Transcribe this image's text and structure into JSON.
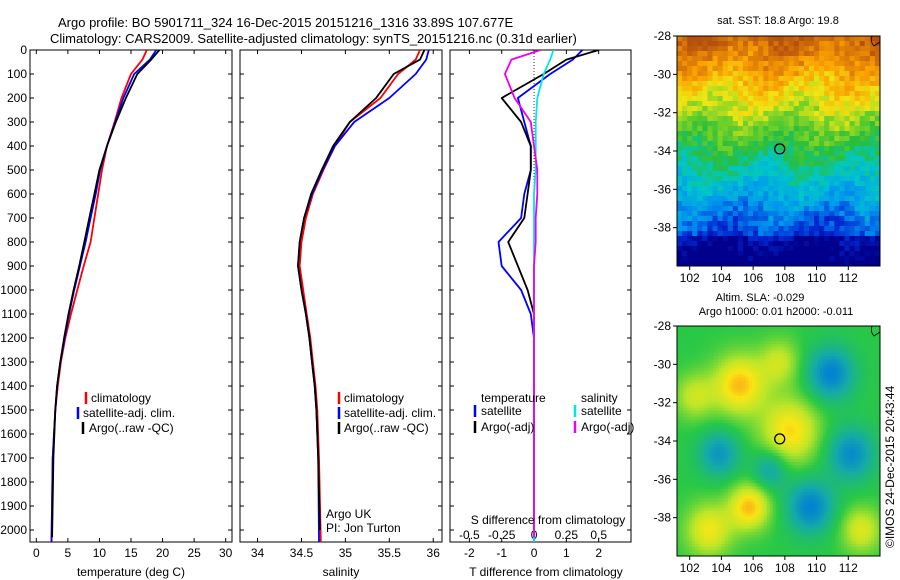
{
  "header": {
    "line1": "Argo profile: BO 5901711_324 16-Dec-2015 20151216_1316 33.89S 107.677E",
    "line2": "Climatology: CARS2009. Satellite-adjusted climatology: synTS_20151216.nc (0.31d earlier)"
  },
  "credit": "©IMOS 24-Dec-2015 20:43:44",
  "colors": {
    "climatology": "#ff0000",
    "satellite": "#0000ff",
    "argo": "#000000",
    "salinity_satellite": "#00e5ee",
    "salinity_argo": "#ee00ee"
  },
  "chart_data": [
    {
      "type": "line",
      "xlabel": "temperature (deg C)",
      "ylim": [
        2050,
        0
      ],
      "xlim": [
        -1,
        31
      ],
      "xticks": [
        "0",
        "5",
        "10",
        "15",
        "20",
        "25",
        "30"
      ],
      "xtick_values": [
        0,
        5,
        10,
        15,
        20,
        25,
        30
      ],
      "yticks": [
        "0",
        "100",
        "200",
        "300",
        "400",
        "500",
        "600",
        "700",
        "800",
        "900",
        "1000",
        "1100",
        "1200",
        "1300",
        "1400",
        "1500",
        "1600",
        "1700",
        "1800",
        "1900",
        "2000"
      ],
      "ytick_values": [
        0,
        100,
        200,
        300,
        400,
        500,
        600,
        700,
        800,
        900,
        1000,
        1100,
        1200,
        1300,
        1400,
        1500,
        1600,
        1700,
        1800,
        1900,
        2000
      ],
      "legend": [
        "climatology",
        "satellite-adj. clim.",
        "Argo(..raw -QC)"
      ],
      "series": [
        {
          "name": "climatology",
          "color": "#ff0000",
          "x": [
            17.5,
            16.8,
            15.0,
            13.5,
            12.4,
            11.2,
            10.4,
            9.8,
            9.2,
            8.6,
            7.5,
            6.5,
            5.5,
            4.6,
            3.9,
            3.4,
            3.0,
            2.6,
            2.4
          ],
          "y": [
            0,
            40,
            100,
            200,
            300,
            400,
            500,
            600,
            700,
            800,
            900,
            1000,
            1100,
            1200,
            1300,
            1400,
            1500,
            1700,
            2050
          ]
        },
        {
          "name": "satellite-adj. clim.",
          "color": "#0000ff",
          "x": [
            19.0,
            18.0,
            15.5,
            13.8,
            12.5,
            11.2,
            10.1,
            9.4,
            8.6,
            7.8,
            6.9,
            6.0,
            5.2,
            4.5,
            3.8,
            3.3,
            3.0,
            2.6,
            2.4
          ],
          "y": [
            0,
            40,
            100,
            200,
            300,
            400,
            500,
            600,
            700,
            800,
            900,
            1000,
            1100,
            1200,
            1300,
            1400,
            1500,
            1700,
            2050
          ]
        },
        {
          "name": "Argo(..raw -QC)",
          "color": "#000000",
          "x": [
            19.5,
            18.2,
            16.0,
            14.2,
            12.6,
            11.2,
            10.0,
            9.2,
            8.4,
            7.6,
            6.8,
            5.9,
            5.1,
            4.4,
            3.8,
            3.3,
            3.0,
            2.7,
            2.5
          ],
          "y": [
            0,
            40,
            100,
            200,
            300,
            400,
            500,
            600,
            700,
            800,
            900,
            1000,
            1100,
            1200,
            1300,
            1400,
            1500,
            1700,
            2030
          ]
        }
      ]
    },
    {
      "type": "line",
      "xlabel": "salinity",
      "ylim": [
        2050,
        0
      ],
      "xlim": [
        33.8,
        36.1
      ],
      "xticks": [
        "34",
        "34.5",
        "35",
        "35.5",
        "36"
      ],
      "xtick_values": [
        34,
        34.5,
        35,
        35.5,
        36
      ],
      "legend": [
        "climatology",
        "satellite-adj. clim.",
        "Argo(..raw -QC)"
      ],
      "annotation": [
        "Argo UK",
        "PI: Jon Turton"
      ],
      "series": [
        {
          "name": "climatology",
          "color": "#ff0000",
          "x": [
            35.85,
            35.8,
            35.6,
            35.4,
            35.05,
            34.88,
            34.75,
            34.63,
            34.55,
            34.5,
            34.48,
            34.52,
            34.56,
            34.6,
            34.63,
            34.66,
            34.68,
            34.7,
            34.72
          ],
          "y": [
            0,
            40,
            100,
            200,
            300,
            400,
            500,
            600,
            700,
            800,
            900,
            1000,
            1100,
            1200,
            1300,
            1400,
            1500,
            1700,
            2050
          ]
        },
        {
          "name": "satellite-adj. clim.",
          "color": "#0000ff",
          "x": [
            35.95,
            35.92,
            35.8,
            35.5,
            35.1,
            34.88,
            34.74,
            34.62,
            34.53,
            34.48,
            34.46,
            34.5,
            34.55,
            34.59,
            34.62,
            34.65,
            34.67,
            34.69,
            34.7
          ],
          "y": [
            0,
            40,
            100,
            200,
            300,
            400,
            500,
            600,
            700,
            800,
            900,
            1000,
            1100,
            1200,
            1300,
            1400,
            1500,
            1700,
            2050
          ]
        },
        {
          "name": "Argo(..raw -QC)",
          "color": "#000000",
          "x": [
            35.9,
            35.85,
            35.55,
            35.35,
            35.05,
            34.86,
            34.73,
            34.61,
            34.53,
            34.48,
            34.46,
            34.5,
            34.55,
            34.59,
            34.62,
            34.65,
            34.67,
            34.69,
            34.71
          ],
          "y": [
            0,
            40,
            100,
            200,
            300,
            400,
            500,
            600,
            700,
            800,
            900,
            1000,
            1100,
            1200,
            1300,
            1400,
            1500,
            1700,
            2000
          ]
        }
      ]
    },
    {
      "type": "line",
      "xlabel": "T difference from climatology",
      "title_bottom": "S difference from climatology",
      "ylim": [
        2050,
        0
      ],
      "xlim": [
        -2.6,
        3.0
      ],
      "xticks": [
        "-2",
        "-1",
        "0",
        "1",
        "2"
      ],
      "xtick_values": [
        -2,
        -1,
        0,
        1,
        2
      ],
      "sticks": [
        "-0.5",
        "-0.25",
        "0",
        "0.25",
        "0.5"
      ],
      "stick_values": [
        -2,
        -1,
        0,
        1,
        2
      ],
      "legend_temperature": [
        "temperature",
        "satellite",
        "Argo(-adj)"
      ],
      "legend_salinity": [
        "salinity",
        "satellite",
        "Argo(-adj)"
      ],
      "series": [
        {
          "name": "satellite",
          "color": "#0000ff",
          "x": [
            1.5,
            1.2,
            0.5,
            -0.5,
            -0.3,
            -0.1,
            -0.1,
            -0.3,
            -0.4,
            -1.1,
            -1.0,
            -0.4,
            -0.1,
            0,
            0,
            0,
            0,
            0,
            0
          ],
          "y": [
            0,
            40,
            100,
            200,
            300,
            400,
            500,
            600,
            700,
            800,
            900,
            1000,
            1100,
            1200,
            1300,
            1400,
            1500,
            1700,
            2050
          ]
        },
        {
          "name": "Argo(-adj)",
          "color": "#000000",
          "x": [
            2.0,
            1.0,
            0.3,
            -1.0,
            -0.4,
            -0.1,
            -0.1,
            -0.2,
            -0.3,
            -0.8,
            -0.5,
            -0.2,
            0,
            0,
            0,
            0,
            0,
            0,
            0
          ],
          "y": [
            0,
            40,
            100,
            200,
            300,
            400,
            500,
            600,
            700,
            800,
            900,
            1000,
            1100,
            1200,
            1300,
            1400,
            1500,
            1700,
            2030
          ]
        },
        {
          "name": "satellite",
          "color": "#00e5ee",
          "x": [
            0.6,
            0.5,
            0.3,
            0.1,
            0.05,
            0.05,
            0.05,
            0,
            0,
            0,
            0,
            0,
            0,
            0,
            0,
            0,
            0,
            0,
            0
          ],
          "y": [
            0,
            40,
            100,
            200,
            300,
            400,
            500,
            600,
            700,
            800,
            900,
            1000,
            1100,
            1200,
            1300,
            1400,
            1500,
            1700,
            2050
          ]
        },
        {
          "name": "Argo(-adj)",
          "color": "#ee00ee",
          "x": [
            0.2,
            -0.7,
            -0.9,
            -0.6,
            -0.1,
            0,
            0.1,
            0.1,
            0.05,
            0.05,
            0,
            0,
            0,
            0,
            0,
            0,
            0,
            0,
            0
          ],
          "y": [
            0,
            40,
            100,
            200,
            300,
            400,
            500,
            600,
            700,
            800,
            900,
            1000,
            1100,
            1200,
            1300,
            1400,
            1500,
            1700,
            2030
          ]
        }
      ]
    },
    {
      "type": "heatmap",
      "title": "sat. SST: 18.8 Argo: 19.8",
      "xticks": [
        "102",
        "104",
        "106",
        "108",
        "110",
        "112"
      ],
      "xtick_values": [
        102,
        104,
        106,
        108,
        110,
        112
      ],
      "yticks": [
        "-28",
        "-30",
        "-32",
        "-34",
        "-36",
        "-38"
      ],
      "ytick_values": [
        -28,
        -30,
        -32,
        -34,
        -36,
        -38
      ],
      "xlim": [
        101.2,
        114
      ],
      "ylim": [
        -28,
        -40
      ],
      "marker": [
        107.677,
        -33.89
      ]
    },
    {
      "type": "heatmap",
      "title": "Altim. SLA: -0.029",
      "subtitle": "Argo h1000: 0.01 h2000: -0.011",
      "xticks": [
        "102",
        "104",
        "106",
        "108",
        "110",
        "112"
      ],
      "xtick_values": [
        102,
        104,
        106,
        108,
        110,
        112
      ],
      "yticks": [
        "-28",
        "-30",
        "-32",
        "-34",
        "-36",
        "-38"
      ],
      "ytick_values": [
        -28,
        -30,
        -32,
        -34,
        -36,
        -38
      ],
      "xlim": [
        101.2,
        114
      ],
      "ylim": [
        -28,
        -40
      ],
      "marker": [
        107.677,
        -33.89
      ]
    }
  ]
}
